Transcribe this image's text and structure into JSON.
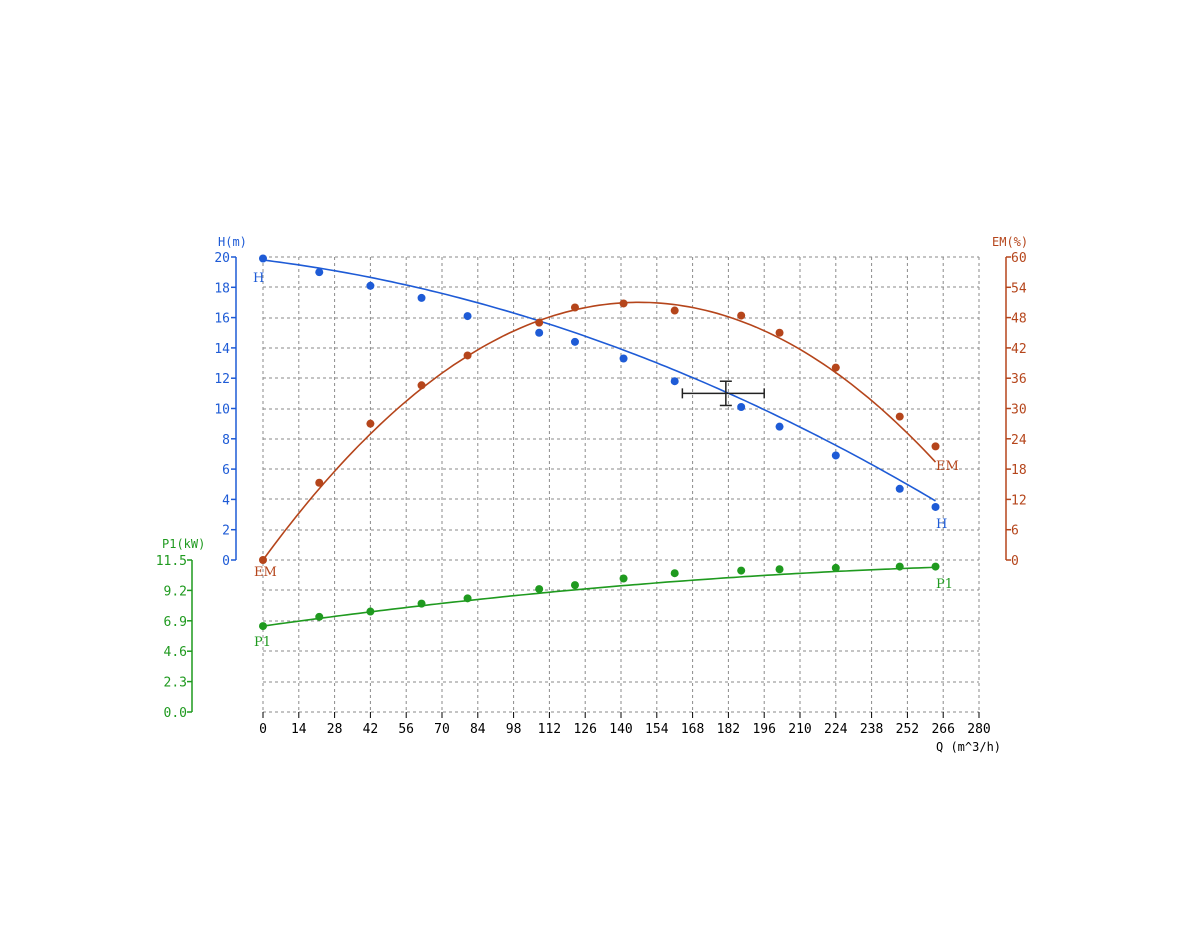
{
  "chart_data": {
    "type": "line",
    "grid": true,
    "x_axis": {
      "label": "Q (m^3/h)",
      "range": [
        0,
        280
      ],
      "ticks": [
        0,
        14,
        28,
        42,
        56,
        70,
        84,
        98,
        112,
        126,
        140,
        154,
        168,
        182,
        196,
        210,
        224,
        238,
        252,
        266,
        280
      ]
    },
    "y_axes": [
      {
        "id": "H",
        "label": "H(m)",
        "side": "left",
        "range": [
          0,
          20
        ],
        "ticks": [
          0,
          2,
          4,
          6,
          8,
          10,
          12,
          14,
          16,
          18,
          20
        ],
        "tick_labels": [
          "0",
          "2",
          "4",
          "6",
          "8",
          "10",
          "12",
          "14",
          "16",
          "18",
          "20"
        ],
        "color": "#1e5bd6"
      },
      {
        "id": "EM",
        "label": "EM(%)",
        "side": "right",
        "range": [
          0,
          60
        ],
        "ticks": [
          0,
          6,
          12,
          18,
          24,
          30,
          36,
          42,
          48,
          54,
          60
        ],
        "tick_labels": [
          "0",
          "6",
          "12",
          "18",
          "24",
          "30",
          "36",
          "42",
          "48",
          "54",
          "60"
        ],
        "color": "#b5451b"
      },
      {
        "id": "P1",
        "label": "P1(kW)",
        "side": "left",
        "range": [
          0,
          11.5
        ],
        "ticks": [
          0,
          2.3,
          4.6,
          6.9,
          9.2,
          11.5
        ],
        "tick_labels": [
          "0.0",
          "2.3",
          "4.6",
          "6.9",
          "9.2",
          "11.5"
        ],
        "color": "#1f9a1f"
      }
    ],
    "series": [
      {
        "name": "H",
        "axis": "H",
        "color": "#1e5bd6",
        "x": [
          0,
          22,
          42,
          62,
          80,
          108,
          122,
          141,
          161,
          187,
          202,
          224,
          249,
          263
        ],
        "y": [
          19.9,
          19.0,
          18.1,
          17.3,
          16.1,
          15.0,
          14.4,
          13.3,
          11.8,
          10.1,
          8.8,
          6.9,
          4.7,
          3.5
        ],
        "fit": [
          19.8,
          -0.021,
          -0.00015
        ]
      },
      {
        "name": "EM",
        "axis": "EM",
        "color": "#b5451b",
        "x": [
          0,
          22,
          42,
          62,
          80,
          108,
          122,
          141,
          161,
          187,
          202,
          224,
          249,
          263
        ],
        "y": [
          0,
          15.3,
          27,
          34.6,
          40.5,
          47,
          50,
          50.8,
          49.4,
          48.4,
          45,
          38.1,
          28.4,
          22.5
        ],
        "fit": [
          0,
          0.6935,
          -0.0023565
        ]
      },
      {
        "name": "P1",
        "axis": "P1",
        "color": "#1f9a1f",
        "x": [
          0,
          22,
          42,
          62,
          80,
          108,
          122,
          141,
          161,
          187,
          202,
          224,
          249,
          263
        ],
        "y": [
          6.5,
          7.2,
          7.6,
          8.2,
          8.6,
          9.3,
          9.6,
          10.1,
          10.5,
          10.7,
          10.8,
          10.9,
          11.0,
          11.0
        ],
        "fit": [
          6.5,
          0.0273,
          -3.95e-05
        ]
      }
    ],
    "operating_point": {
      "q": 181,
      "h": 11,
      "q_range": [
        164,
        196
      ],
      "h_range": [
        10.2,
        11.8
      ]
    }
  }
}
